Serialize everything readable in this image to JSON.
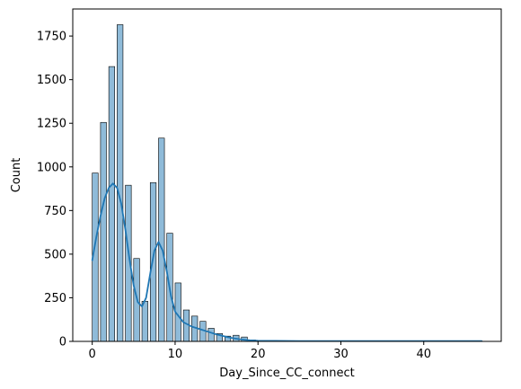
{
  "chart_data": {
    "type": "histogram",
    "xlabel": "Day_Since_CC_connect",
    "ylabel": "Count",
    "xlim": [
      -2.35,
      49.35
    ],
    "ylim": [
      0,
      1905
    ],
    "xticks": [
      0,
      10,
      20,
      30,
      40
    ],
    "yticks": [
      0,
      250,
      500,
      750,
      1000,
      1250,
      1500,
      1750
    ],
    "bin_width": 0.7121,
    "bars": [
      {
        "x": 0,
        "count": 965
      },
      {
        "x": 1,
        "count": 1255
      },
      {
        "x": 2,
        "count": 1575
      },
      {
        "x": 3,
        "count": 1815
      },
      {
        "x": 4,
        "count": 895
      },
      {
        "x": 5,
        "count": 475
      },
      {
        "x": 6,
        "count": 230
      },
      {
        "x": 7,
        "count": 910
      },
      {
        "x": 8,
        "count": 1165
      },
      {
        "x": 9,
        "count": 620
      },
      {
        "x": 10,
        "count": 335
      },
      {
        "x": 11,
        "count": 180
      },
      {
        "x": 12,
        "count": 145
      },
      {
        "x": 13,
        "count": 115
      },
      {
        "x": 14,
        "count": 75
      },
      {
        "x": 15,
        "count": 45
      },
      {
        "x": 16,
        "count": 30
      },
      {
        "x": 17,
        "count": 35
      },
      {
        "x": 18,
        "count": 25
      },
      {
        "x": 19,
        "count": 8
      },
      {
        "x": 20,
        "count": 4
      },
      {
        "x": 21,
        "count": 3
      },
      {
        "x": 22,
        "count": 2
      }
    ],
    "kde": {
      "x": [
        0,
        0.5,
        1,
        1.5,
        2,
        2.5,
        3,
        3.5,
        4,
        4.5,
        5,
        5.5,
        6,
        6.5,
        7,
        7.5,
        8,
        8.5,
        9,
        9.5,
        10,
        11,
        12,
        13,
        14,
        15,
        16,
        17,
        18,
        19,
        20,
        22,
        25,
        30,
        35,
        40,
        45,
        47
      ],
      "y": [
        465,
        600,
        720,
        820,
        880,
        905,
        880,
        790,
        640,
        470,
        320,
        225,
        200,
        250,
        390,
        520,
        570,
        520,
        400,
        260,
        170,
        110,
        85,
        70,
        55,
        40,
        28,
        18,
        11,
        6,
        4,
        3,
        2,
        2,
        2,
        2,
        2,
        2
      ]
    },
    "colors": {
      "bar_fill": "#1f77b4",
      "bar_fill_opacity": 0.5,
      "bar_edge": "#000000",
      "kde_line": "#1f77b4"
    }
  }
}
